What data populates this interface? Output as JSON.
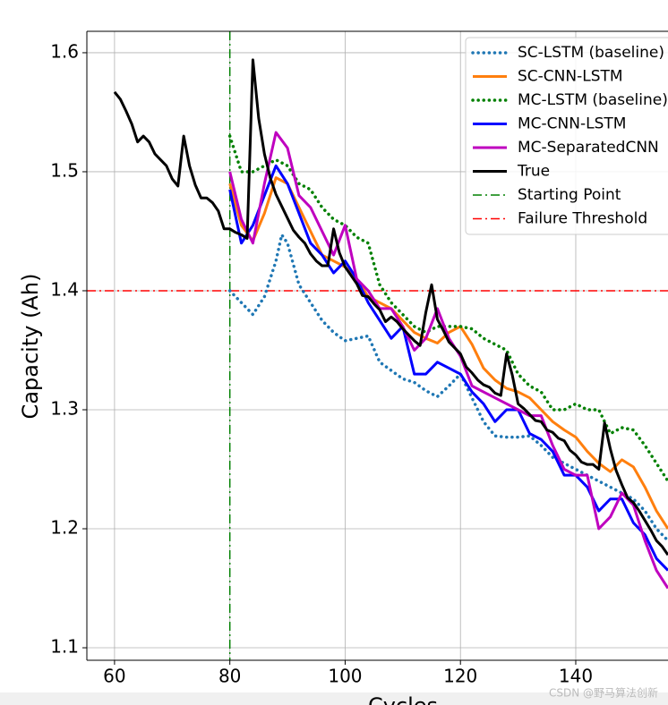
{
  "chart_data": {
    "type": "line",
    "ylabel": "Capacity (Ah)",
    "xlabel": "Cycles",
    "xlim": [
      55.2,
      156
    ],
    "ylim": [
      1.0895,
      1.618
    ],
    "xticks": [
      60,
      80,
      100,
      120,
      140
    ],
    "yticks": [
      1.1,
      1.2,
      1.3,
      1.4,
      1.5,
      1.6
    ],
    "grid": true,
    "legend": "upper right",
    "series": [
      {
        "name": "SC-LSTM (baseline)",
        "color": "#1f77b4",
        "style": "dotted",
        "x": [
          80,
          82,
          84,
          86,
          88,
          89,
          90,
          92,
          94,
          96,
          98,
          100,
          102,
          104,
          106,
          108,
          110,
          112,
          114,
          116,
          118,
          120,
          122,
          124,
          126,
          128,
          130,
          132,
          134,
          136,
          138,
          140,
          142,
          144,
          146,
          148,
          150,
          152,
          154,
          156
        ],
        "values": [
          1.4,
          1.39,
          1.38,
          1.395,
          1.425,
          1.447,
          1.44,
          1.405,
          1.39,
          1.375,
          1.365,
          1.358,
          1.36,
          1.362,
          1.34,
          1.333,
          1.326,
          1.323,
          1.316,
          1.311,
          1.32,
          1.33,
          1.31,
          1.29,
          1.278,
          1.277,
          1.277,
          1.278,
          1.27,
          1.26,
          1.255,
          1.25,
          1.245,
          1.24,
          1.235,
          1.23,
          1.225,
          1.215,
          1.2,
          1.19
        ]
      },
      {
        "name": "SC-CNN-LSTM",
        "color": "#ff7f0e",
        "style": "solid",
        "x": [
          80,
          82,
          84,
          86,
          88,
          90,
          92,
          94,
          96,
          98,
          100,
          102,
          104,
          106,
          108,
          110,
          112,
          114,
          116,
          118,
          120,
          122,
          124,
          126,
          128,
          130,
          132,
          134,
          136,
          138,
          140,
          142,
          144,
          146,
          148,
          150,
          152,
          154,
          156
        ],
        "values": [
          1.49,
          1.455,
          1.442,
          1.465,
          1.495,
          1.49,
          1.47,
          1.45,
          1.43,
          1.425,
          1.42,
          1.41,
          1.395,
          1.39,
          1.385,
          1.375,
          1.365,
          1.36,
          1.356,
          1.365,
          1.37,
          1.355,
          1.335,
          1.325,
          1.318,
          1.315,
          1.31,
          1.3,
          1.29,
          1.283,
          1.277,
          1.265,
          1.255,
          1.248,
          1.258,
          1.252,
          1.235,
          1.215,
          1.2
        ]
      },
      {
        "name": "MC-LSTM (baseline)",
        "color": "#008000",
        "style": "dotted",
        "x": [
          80,
          82,
          84,
          86,
          88,
          90,
          92,
          94,
          96,
          98,
          100,
          102,
          104,
          106,
          108,
          110,
          112,
          114,
          116,
          118,
          120,
          122,
          124,
          126,
          128,
          130,
          132,
          134,
          136,
          138,
          140,
          142,
          144,
          146,
          148,
          150,
          152,
          154,
          156
        ],
        "values": [
          1.53,
          1.5,
          1.5,
          1.505,
          1.51,
          1.505,
          1.49,
          1.485,
          1.47,
          1.46,
          1.455,
          1.445,
          1.44,
          1.405,
          1.39,
          1.38,
          1.37,
          1.365,
          1.37,
          1.37,
          1.37,
          1.368,
          1.36,
          1.355,
          1.35,
          1.33,
          1.32,
          1.315,
          1.3,
          1.3,
          1.305,
          1.3,
          1.3,
          1.28,
          1.285,
          1.283,
          1.27,
          1.255,
          1.24
        ]
      },
      {
        "name": "MC-CNN-LSTM",
        "color": "#0000ff",
        "style": "solid",
        "x": [
          80,
          82,
          84,
          86,
          88,
          90,
          92,
          94,
          96,
          98,
          100,
          102,
          104,
          106,
          108,
          110,
          112,
          114,
          116,
          118,
          120,
          122,
          124,
          126,
          128,
          130,
          132,
          134,
          136,
          138,
          140,
          142,
          144,
          146,
          148,
          150,
          152,
          154,
          156
        ],
        "values": [
          1.485,
          1.44,
          1.455,
          1.48,
          1.505,
          1.49,
          1.465,
          1.44,
          1.43,
          1.415,
          1.425,
          1.41,
          1.39,
          1.375,
          1.36,
          1.37,
          1.33,
          1.33,
          1.34,
          1.335,
          1.33,
          1.315,
          1.305,
          1.29,
          1.3,
          1.3,
          1.28,
          1.275,
          1.265,
          1.245,
          1.245,
          1.235,
          1.215,
          1.225,
          1.225,
          1.205,
          1.195,
          1.175,
          1.165
        ]
      },
      {
        "name": "MC-SeparatedCNN",
        "color": "#bf00bf",
        "style": "solid",
        "x": [
          80,
          82,
          84,
          86,
          88,
          90,
          92,
          94,
          96,
          98,
          100,
          102,
          104,
          106,
          108,
          110,
          112,
          114,
          116,
          118,
          120,
          122,
          124,
          126,
          128,
          130,
          132,
          134,
          136,
          138,
          140,
          142,
          144,
          146,
          148,
          150,
          152,
          154,
          156
        ],
        "values": [
          1.5,
          1.46,
          1.44,
          1.49,
          1.533,
          1.52,
          1.48,
          1.47,
          1.45,
          1.43,
          1.455,
          1.41,
          1.4,
          1.385,
          1.385,
          1.37,
          1.35,
          1.36,
          1.385,
          1.36,
          1.345,
          1.32,
          1.315,
          1.31,
          1.305,
          1.3,
          1.295,
          1.295,
          1.27,
          1.25,
          1.245,
          1.245,
          1.2,
          1.21,
          1.23,
          1.22,
          1.19,
          1.165,
          1.15
        ]
      },
      {
        "name": "True",
        "color": "#000000",
        "style": "solid",
        "x": [
          60,
          61,
          62,
          63,
          64,
          65,
          66,
          67,
          68,
          69,
          70,
          71,
          72,
          73,
          74,
          75,
          76,
          77,
          78,
          79,
          80,
          81,
          82,
          83,
          84,
          85,
          86,
          87,
          88,
          89,
          90,
          91,
          92,
          93,
          94,
          95,
          96,
          97,
          98,
          99,
          100,
          101,
          102,
          103,
          104,
          105,
          106,
          107,
          108,
          109,
          110,
          111,
          112,
          113,
          114,
          115,
          116,
          117,
          118,
          119,
          120,
          121,
          122,
          123,
          124,
          125,
          126,
          127,
          128,
          129,
          130,
          131,
          132,
          133,
          134,
          135,
          136,
          137,
          138,
          139,
          140,
          141,
          142,
          143,
          144,
          145,
          146,
          147,
          148,
          149,
          150,
          151,
          152,
          153,
          154,
          155,
          156
        ],
        "values": [
          1.567,
          1.561,
          1.551,
          1.54,
          1.525,
          1.53,
          1.525,
          1.515,
          1.51,
          1.505,
          1.494,
          1.488,
          1.53,
          1.505,
          1.489,
          1.478,
          1.478,
          1.474,
          1.467,
          1.452,
          1.452,
          1.449,
          1.447,
          1.444,
          1.594,
          1.545,
          1.515,
          1.495,
          1.481,
          1.471,
          1.461,
          1.451,
          1.445,
          1.44,
          1.431,
          1.425,
          1.421,
          1.421,
          1.452,
          1.432,
          1.42,
          1.413,
          1.406,
          1.396,
          1.395,
          1.389,
          1.384,
          1.374,
          1.378,
          1.374,
          1.368,
          1.363,
          1.358,
          1.354,
          1.382,
          1.405,
          1.376,
          1.367,
          1.357,
          1.352,
          1.347,
          1.336,
          1.331,
          1.325,
          1.321,
          1.319,
          1.314,
          1.312,
          1.347,
          1.329,
          1.305,
          1.301,
          1.296,
          1.291,
          1.29,
          1.283,
          1.281,
          1.276,
          1.274,
          1.266,
          1.262,
          1.256,
          1.254,
          1.254,
          1.25,
          1.289,
          1.267,
          1.249,
          1.237,
          1.226,
          1.222,
          1.215,
          1.207,
          1.199,
          1.19,
          1.185,
          1.178
        ]
      }
    ],
    "reference_lines": [
      {
        "name": "Starting Point",
        "orientation": "vertical",
        "value": 80,
        "color": "#008000"
      },
      {
        "name": "Failure Threshold",
        "orientation": "horizontal",
        "value": 1.4,
        "color": "#ff0000"
      }
    ],
    "watermark": "CSDN @野马算法创新"
  }
}
